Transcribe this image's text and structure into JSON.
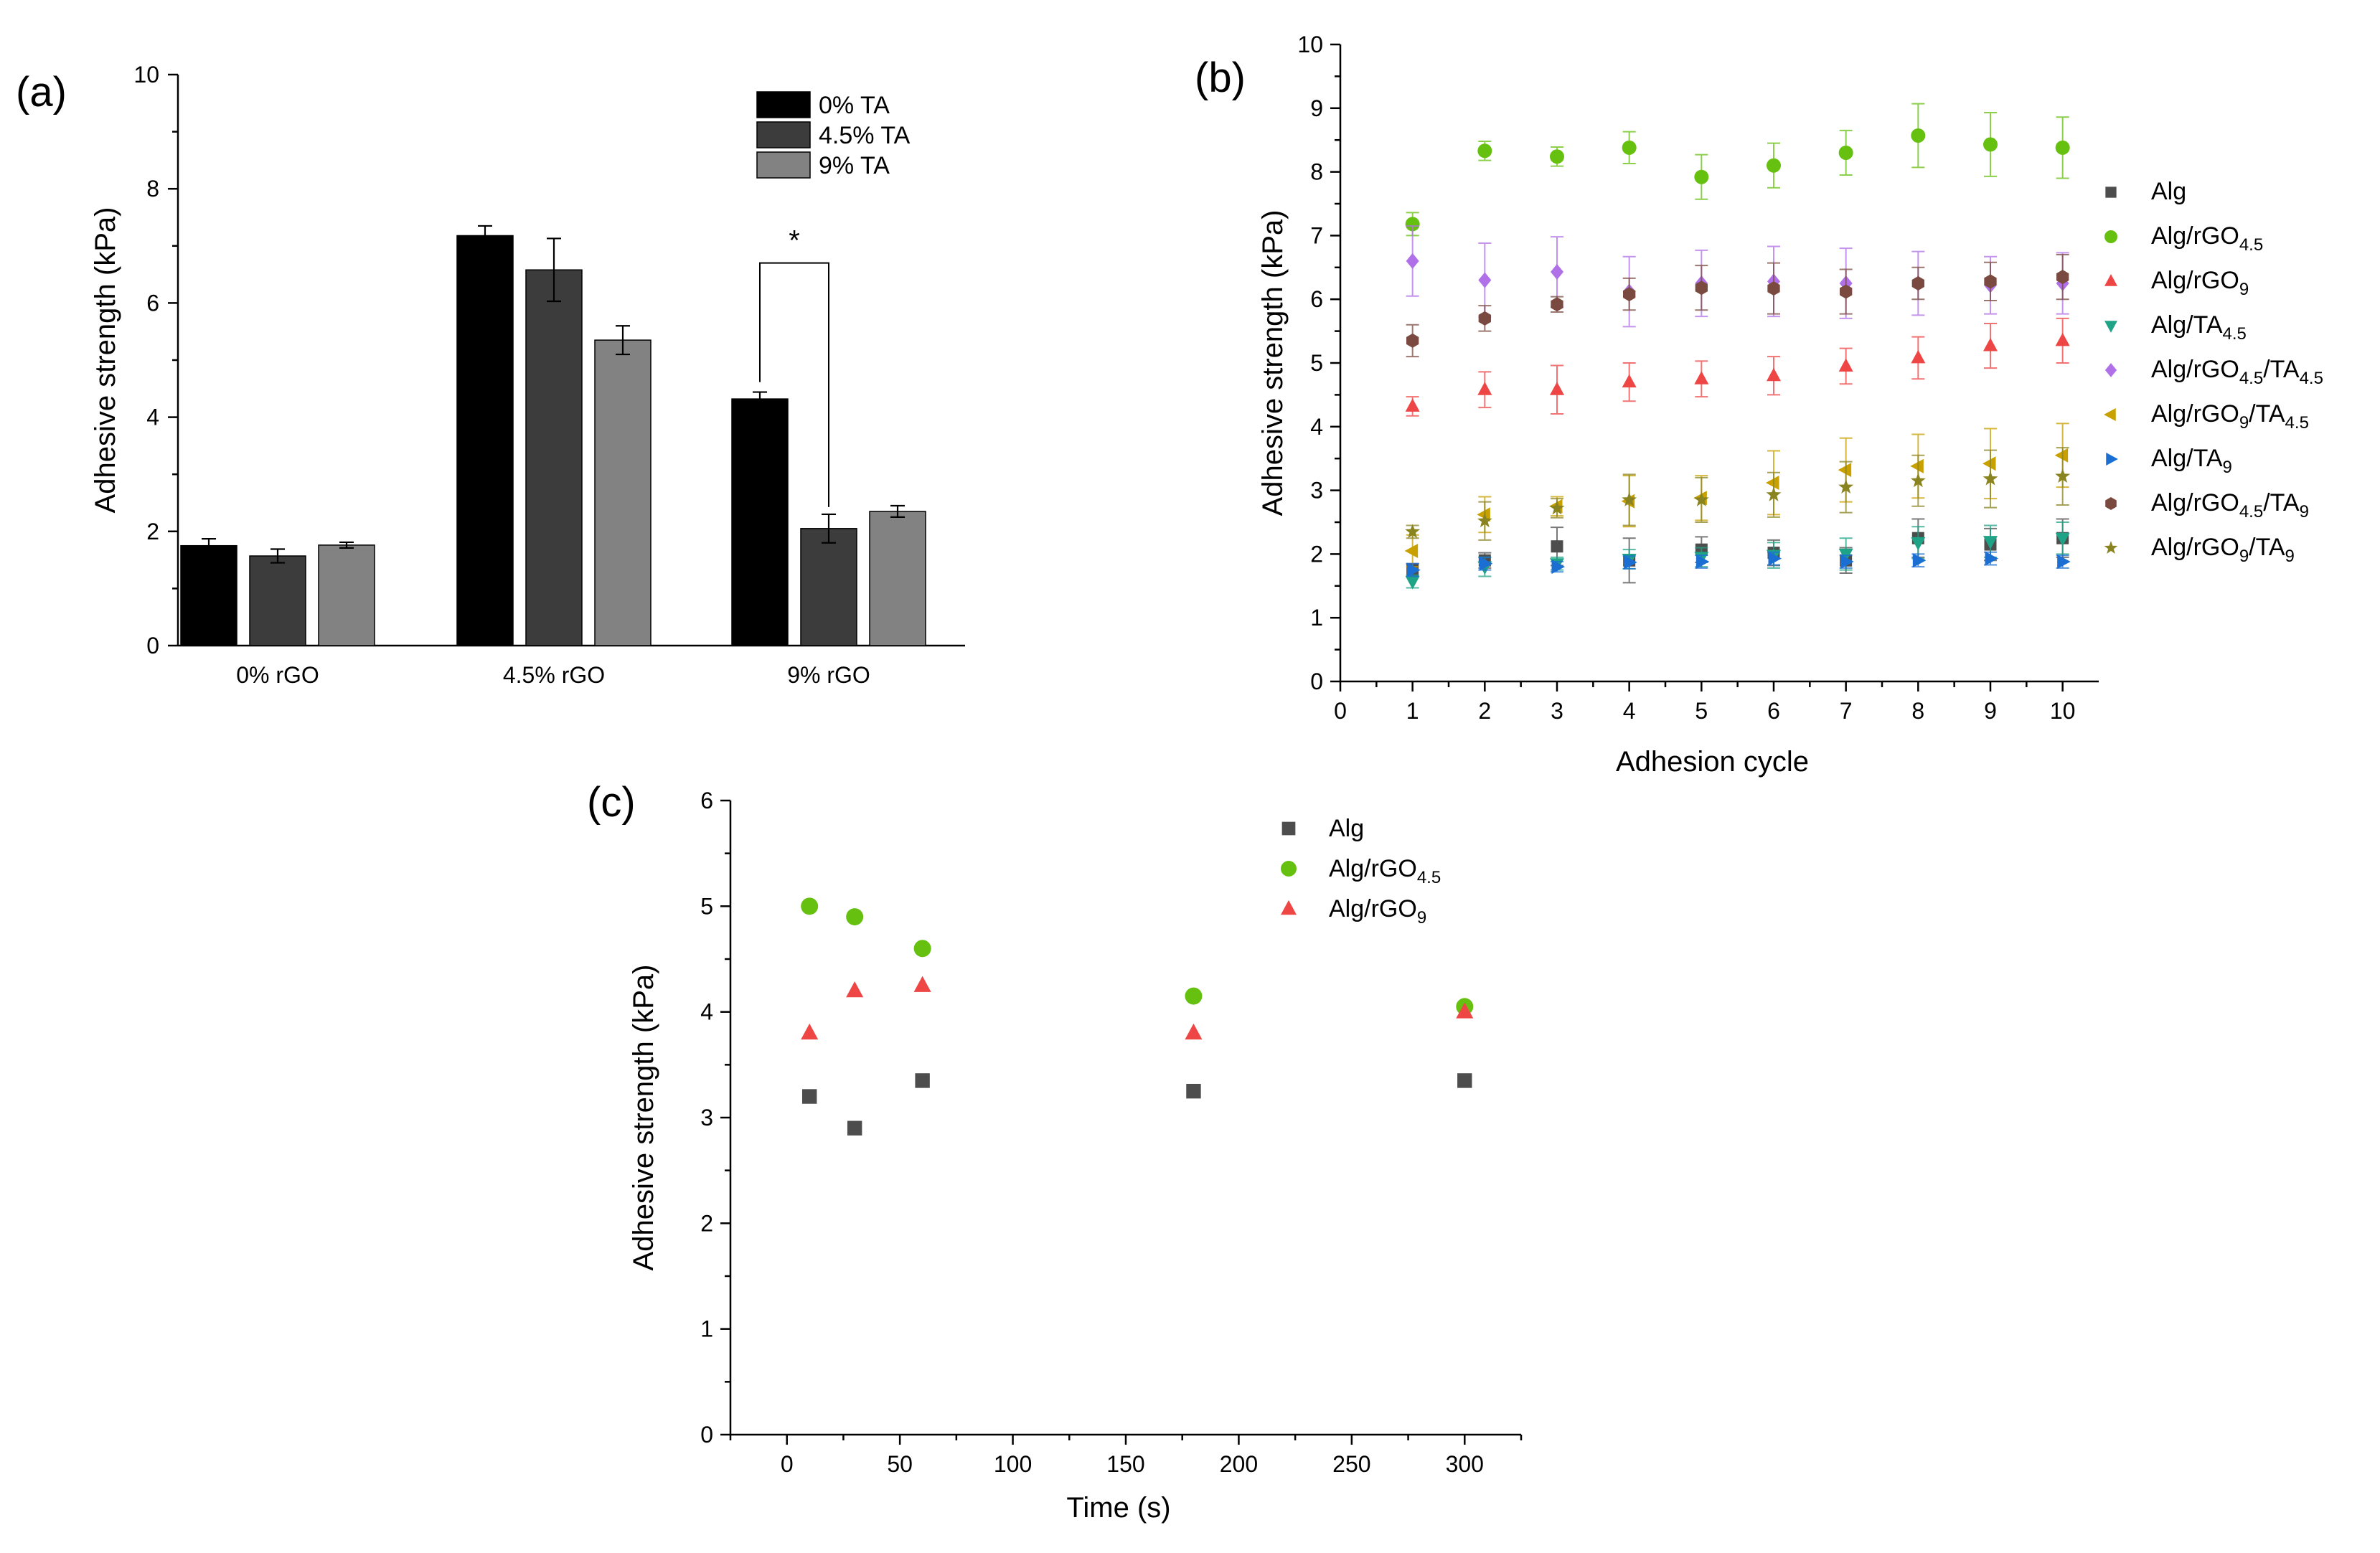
{
  "chart_data": [
    {
      "panel": "(a)",
      "type": "bar",
      "title": "",
      "xlabel": "",
      "ylabel": "Adhesive strength (kPa)",
      "ylim": [
        0,
        10
      ],
      "yticks": [
        0,
        2,
        4,
        6,
        8,
        10
      ],
      "categories": [
        "0% rGO",
        "4.5% rGO",
        "9% rGO"
      ],
      "legend_position": "top-right",
      "series": [
        {
          "name": "0% TA",
          "color": "#000000",
          "values": [
            1.75,
            7.18,
            4.32
          ],
          "errors": [
            0.12,
            0.17,
            0.12
          ]
        },
        {
          "name": "4.5% TA",
          "color": "#3c3c3c",
          "values": [
            1.57,
            6.58,
            2.05
          ],
          "errors": [
            0.12,
            0.55,
            0.25
          ]
        },
        {
          "name": "9% TA",
          "color": "#828282",
          "values": [
            1.76,
            5.35,
            2.35
          ],
          "errors": [
            0.05,
            0.25,
            0.1
          ]
        }
      ],
      "annotation": {
        "text": "*",
        "category": "9% rGO",
        "between": [
          "0% TA",
          "4.5% TA"
        ],
        "y": 6.7
      }
    },
    {
      "panel": "(b)",
      "type": "scatter",
      "title": "",
      "xlabel": "Adhesion cycle",
      "ylabel": "Adhesive strength (kPa)",
      "xlim": [
        0,
        10.5
      ],
      "ylim": [
        0,
        10
      ],
      "xticks": [
        0,
        1,
        2,
        3,
        4,
        5,
        6,
        7,
        8,
        9,
        10
      ],
      "yticks": [
        0,
        1,
        2,
        3,
        4,
        5,
        6,
        7,
        8,
        9,
        10
      ],
      "x": [
        1,
        2,
        3,
        4,
        5,
        6,
        7,
        8,
        9,
        10
      ],
      "legend_position": "right",
      "series": [
        {
          "name": "Alg",
          "base": "Alg",
          "sub": "",
          "base2": "",
          "sub2": "",
          "marker": "square",
          "color": "#4d4d4d",
          "values": [
            1.75,
            1.9,
            2.12,
            1.9,
            2.07,
            2.02,
            1.9,
            2.25,
            2.15,
            2.25
          ],
          "errors": [
            0.1,
            0.12,
            0.3,
            0.35,
            0.2,
            0.2,
            0.2,
            0.3,
            0.25,
            0.3
          ]
        },
        {
          "name": "Alg/rGO4.5",
          "base": "Alg/rGO",
          "sub": "4.5",
          "base2": "",
          "sub2": "",
          "marker": "circle",
          "color": "#66c010",
          "values": [
            7.18,
            8.33,
            8.24,
            8.38,
            7.92,
            8.1,
            8.3,
            8.57,
            8.43,
            8.38
          ],
          "errors": [
            0.18,
            0.15,
            0.15,
            0.25,
            0.35,
            0.35,
            0.35,
            0.5,
            0.5,
            0.48
          ]
        },
        {
          "name": "Alg/rGO9",
          "base": "Alg/rGO",
          "sub": "9",
          "base2": "",
          "sub2": "",
          "marker": "triangle-up",
          "color": "#ee4545",
          "values": [
            4.32,
            4.58,
            4.58,
            4.7,
            4.75,
            4.8,
            4.95,
            5.08,
            5.27,
            5.35
          ],
          "errors": [
            0.15,
            0.28,
            0.38,
            0.3,
            0.28,
            0.3,
            0.28,
            0.33,
            0.35,
            0.35
          ]
        },
        {
          "name": "Alg/TA4.5",
          "base": "Alg/TA",
          "sub": "4.5",
          "base2": "",
          "sub2": "",
          "marker": "triangle-down",
          "color": "#1fa386",
          "values": [
            1.57,
            1.8,
            1.85,
            1.92,
            1.95,
            1.98,
            2.0,
            2.18,
            2.2,
            2.25
          ],
          "errors": [
            0.1,
            0.15,
            0.1,
            0.15,
            0.15,
            0.2,
            0.25,
            0.25,
            0.25,
            0.25
          ]
        },
        {
          "name": "Alg/rGO4.5/TA4.5",
          "base": "Alg/rGO",
          "sub": "4.5",
          "base2": "/TA",
          "sub2": "4.5",
          "marker": "diamond",
          "color": "#b070e8",
          "values": [
            6.6,
            6.3,
            6.43,
            6.12,
            6.25,
            6.28,
            6.25,
            6.25,
            6.22,
            6.25
          ],
          "errors": [
            0.55,
            0.58,
            0.55,
            0.55,
            0.52,
            0.55,
            0.55,
            0.5,
            0.45,
            0.48
          ]
        },
        {
          "name": "Alg/rGO9/TA4.5",
          "base": "Alg/rGO",
          "sub": "9",
          "base2": "/TA",
          "sub2": "4.5",
          "marker": "triangle-left",
          "color": "#c8a000",
          "values": [
            2.05,
            2.62,
            2.75,
            2.83,
            2.88,
            3.12,
            3.32,
            3.38,
            3.42,
            3.55
          ],
          "errors": [
            0.25,
            0.28,
            0.15,
            0.4,
            0.35,
            0.5,
            0.5,
            0.5,
            0.55,
            0.5
          ]
        },
        {
          "name": "Alg/TA9",
          "base": "Alg/TA",
          "sub": "9",
          "base2": "",
          "sub2": "",
          "marker": "triangle-right",
          "color": "#1c6fd2",
          "values": [
            1.75,
            1.85,
            1.8,
            1.87,
            1.88,
            1.93,
            1.88,
            1.9,
            1.93,
            1.88
          ],
          "errors": [
            0.1,
            0.1,
            0.08,
            0.1,
            0.1,
            0.1,
            0.1,
            0.1,
            0.1,
            0.1
          ]
        },
        {
          "name": "Alg/rGO4.5/TA9",
          "base": "Alg/rGO",
          "sub": "4.5",
          "base2": "/TA",
          "sub2": "9",
          "marker": "hexagon",
          "color": "#7a4a40",
          "values": [
            5.35,
            5.7,
            5.92,
            6.08,
            6.18,
            6.17,
            6.12,
            6.25,
            6.28,
            6.35
          ],
          "errors": [
            0.25,
            0.2,
            0.12,
            0.25,
            0.35,
            0.4,
            0.35,
            0.25,
            0.3,
            0.35
          ]
        },
        {
          "name": "Alg/rGO9/TA9",
          "base": "Alg/rGO",
          "sub": "9",
          "base2": "/TA",
          "sub2": "9",
          "marker": "star",
          "color": "#8a8420",
          "values": [
            2.35,
            2.52,
            2.72,
            2.85,
            2.85,
            2.93,
            3.05,
            3.15,
            3.18,
            3.22
          ],
          "errors": [
            0.1,
            0.3,
            0.15,
            0.4,
            0.35,
            0.35,
            0.4,
            0.4,
            0.45,
            0.45
          ]
        }
      ]
    },
    {
      "panel": "(c)",
      "type": "scatter",
      "title": "",
      "xlabel": "Time (s)",
      "ylabel": "Adhesive strength (kPa)",
      "xlim": [
        -25,
        325
      ],
      "ylim": [
        0,
        6
      ],
      "xticks": [
        0,
        50,
        100,
        150,
        200,
        250,
        300
      ],
      "yticks": [
        0,
        1,
        2,
        3,
        4,
        5,
        6
      ],
      "x": [
        10,
        30,
        60,
        180,
        300
      ],
      "legend_position": "top-right",
      "series": [
        {
          "name": "Alg",
          "base": "Alg",
          "sub": "",
          "marker": "square",
          "color": "#4d4d4d",
          "values": [
            3.2,
            2.9,
            3.35,
            3.25,
            3.35
          ]
        },
        {
          "name": "Alg/rGO4.5",
          "base": "Alg/rGO",
          "sub": "4.5",
          "marker": "circle",
          "color": "#66c010",
          "values": [
            5.0,
            4.9,
            4.6,
            4.15,
            4.05
          ]
        },
        {
          "name": "Alg/rGO9",
          "base": "Alg/rGO",
          "sub": "9",
          "marker": "triangle-up",
          "color": "#ee4545",
          "values": [
            3.8,
            4.2,
            4.25,
            3.8,
            4.0
          ]
        }
      ]
    }
  ]
}
